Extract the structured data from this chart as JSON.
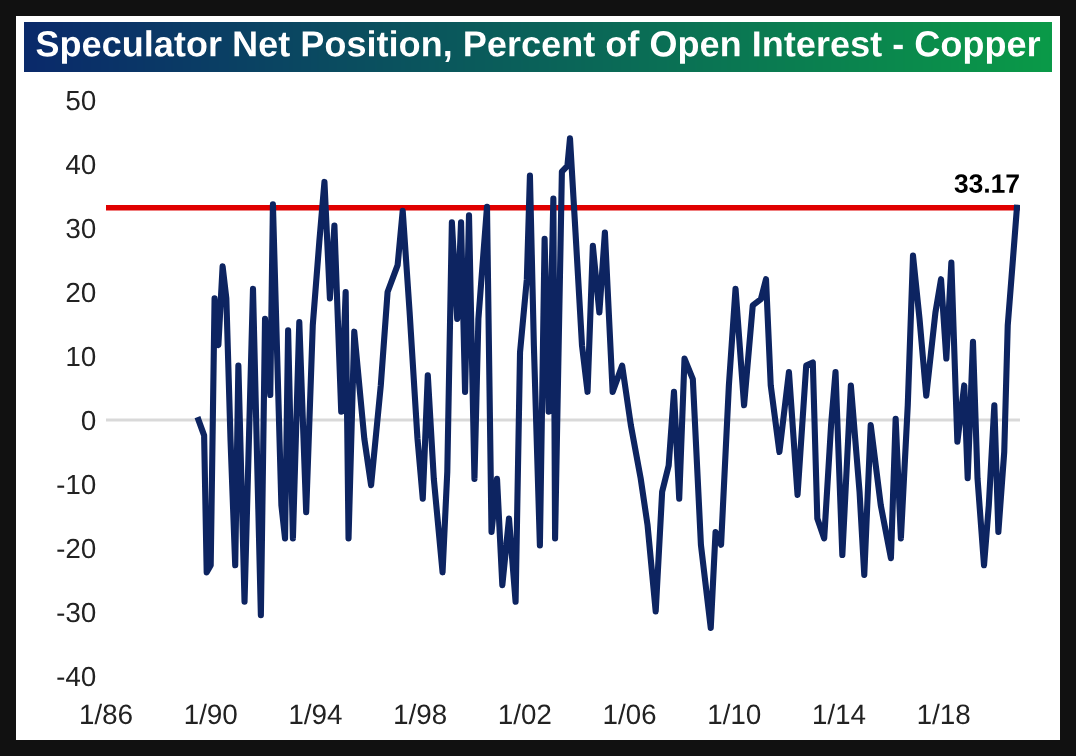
{
  "chart_data": {
    "type": "line",
    "title": "Speculator Net Position, Percent of Open Interest - Copper",
    "x": [
      "1989-07-15",
      "1989-10-01",
      "1989-11-06",
      "1990-01-01",
      "1990-02-24",
      "1990-04-18",
      "1990-06-16",
      "1990-08-07",
      "1990-10-04",
      "1990-12-09",
      "1991-01-22",
      "1991-04-18",
      "1991-08-14",
      "1991-12-02",
      "1992-01-29",
      "1992-04-11",
      "1992-05-18",
      "1992-09-13",
      "1992-11-03",
      "1992-12-16",
      "1993-02-21",
      "1993-05-21",
      "1993-08-25",
      "1993-11-25",
      "1994-02-24",
      "1994-05-07",
      "1994-07-22",
      "1994-09-23",
      "1994-12-27",
      "1995-02-27",
      "1995-04-08",
      "1995-06-27",
      "1995-11-14",
      "1996-02-17",
      "1996-07-01",
      "1996-10-04",
      "1997-02-21",
      "1997-05-03",
      "1997-08-07",
      "1997-11-25",
      "1998-02-07",
      "1998-04-18",
      "1998-07-11",
      "1998-11-10",
      "1999-01-15",
      "1999-03-20",
      "1999-06-02",
      "1999-07-26",
      "1999-09-20",
      "1999-11-14",
      "2000-01-29",
      "2000-03-24",
      "2000-07-22",
      "2000-09-23",
      "2000-12-09",
      "2001-02-21",
      "2001-05-25",
      "2001-08-25",
      "2001-10-26",
      "2002-01-29",
      "2002-03-13",
      "2002-05-07",
      "2002-07-30",
      "2002-10-04",
      "2002-11-29",
      "2003-02-03",
      "2003-02-27",
      "2003-06-02",
      "2003-08-18",
      "2003-09-23",
      "2003-12-09",
      "2004-03-09",
      "2004-05-25",
      "2004-08-07",
      "2004-11-06",
      "2005-01-22",
      "2005-05-10",
      "2005-09-20",
      "2006-01-19",
      "2006-06-05",
      "2006-09-09",
      "2007-01-01",
      "2007-04-01",
      "2007-07-01",
      "2007-09-13",
      "2007-11-25",
      "2008-02-07",
      "2008-06-02",
      "2008-09-23",
      "2009-02-07",
      "2009-04-15",
      "2009-07-01",
      "2009-10-18",
      "2010-01-19",
      "2010-05-18",
      "2010-09-16",
      "2011-01-08",
      "2011-03-20",
      "2011-05-25",
      "2011-09-23",
      "2012-02-03",
      "2012-06-02",
      "2012-10-01",
      "2013-01-01",
      "2013-03-05",
      "2013-06-09",
      "2013-09-13",
      "2013-11-14",
      "2014-02-17",
      "2014-06-16",
      "2014-10-15",
      "2014-12-20",
      "2015-03-20",
      "2015-08-07",
      "2015-12-27",
      "2016-03-02",
      "2016-05-14",
      "2016-08-18",
      "2016-10-30",
      "2017-01-29",
      "2017-05-03",
      "2017-09-08",
      "2017-11-25",
      "2018-02-07",
      "2018-04-18",
      "2018-07-11",
      "2018-10-15",
      "2018-12-02",
      "2019-02-14",
      "2019-04-18",
      "2019-07-18",
      "2019-09-23",
      "2019-12-09",
      "2020-02-03",
      "2020-04-25",
      "2020-06-13",
      "2020-08-25",
      "2020-10-19"
    ],
    "series": [
      {
        "color": "#0d2461",
        "values": [
          0,
          -2.4,
          -23.8,
          -22.7,
          19,
          11.7,
          24,
          19,
          -3,
          -22.7,
          8.5,
          -28.4,
          20.5,
          -30.5,
          15.8,
          3.9,
          33.7,
          -13.3,
          -18.5,
          14,
          -18.5,
          15.3,
          -14.4,
          14.8,
          27.8,
          37.2,
          19,
          30.4,
          1.3,
          20,
          -18.5,
          13.8,
          -2.9,
          -10.2,
          5.4,
          20,
          24.2,
          32.7,
          16.9,
          -2.9,
          -12.3,
          7,
          -9.2,
          -23.8,
          -8.1,
          30.9,
          15.8,
          30.9,
          4.4,
          32,
          -9.2,
          15.8,
          33.3,
          -17.5,
          -9.2,
          -25.8,
          -15.4,
          -28.4,
          10.6,
          22,
          38.2,
          11.7,
          -19.6,
          28.3,
          1.3,
          34.6,
          -18.5,
          38.8,
          39.7,
          44,
          29.3,
          11.6,
          4.4,
          27.2,
          16.8,
          29.3,
          4.4,
          8.5,
          -0.8,
          -9.1,
          -16.4,
          -29.9,
          -11.2,
          -7.1,
          4.4,
          -12.3,
          9.6,
          6.4,
          -19.5,
          -32.5,
          -17.5,
          -19.5,
          5.4,
          20.5,
          2.3,
          17.9,
          18.9,
          22,
          5.4,
          -5,
          7.5,
          -11.7,
          8.5,
          9,
          -15.4,
          -18.5,
          -0.8,
          7.5,
          -21.1,
          5.4,
          -11.2,
          -24.2,
          -0.8,
          -13.3,
          -21.6,
          0.2,
          -18.5,
          2.3,
          25.7,
          15.8,
          3.8,
          16.8,
          22,
          9.6,
          24.6,
          -3.4,
          5.4,
          -9.1,
          12.2,
          -9.1,
          -22.7,
          -13.3,
          2.3,
          -17.5,
          -5,
          14.8,
          25.2,
          33.17
        ]
      }
    ],
    "xlim": [
      "1986-01-01",
      "2020-12-01"
    ],
    "xticks": [
      {
        "value": "1986-01-01",
        "label": "1/86"
      },
      {
        "value": "1990-01-01",
        "label": "1/90"
      },
      {
        "value": "1994-01-01",
        "label": "1/94"
      },
      {
        "value": "1998-01-01",
        "label": "1/98"
      },
      {
        "value": "2002-01-01",
        "label": "1/02"
      },
      {
        "value": "2006-01-01",
        "label": "1/06"
      },
      {
        "value": "2010-01-01",
        "label": "1/10"
      },
      {
        "value": "2014-01-01",
        "label": "1/14"
      },
      {
        "value": "2018-01-01",
        "label": "1/18"
      }
    ],
    "ylim": [
      -40,
      50
    ],
    "yticks": [
      -40,
      -30,
      -20,
      -10,
      0,
      10,
      20,
      30,
      40,
      50
    ],
    "ref_lines": [
      {
        "axis": "y",
        "value": 0,
        "color": "#d9d9d9"
      },
      {
        "axis": "y",
        "value": 33.17,
        "label": "33.17",
        "color": "#e00000"
      }
    ],
    "grid": false,
    "legend": false
  }
}
